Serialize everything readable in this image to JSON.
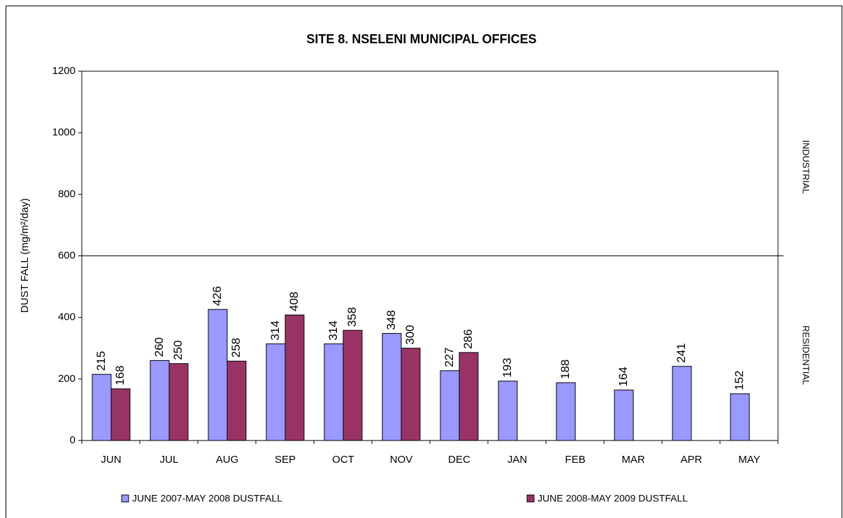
{
  "chart_data": {
    "type": "bar",
    "title": "SITE 8. NSELENI MUNICIPAL OFFICES",
    "y_label": "DUST FALL  (mg/m²/day)",
    "categories": [
      "JUN",
      "JUL",
      "AUG",
      "SEP",
      "OCT",
      "NOV",
      "DEC",
      "JAN",
      "FEB",
      "MAR",
      "APR",
      "MAY"
    ],
    "series": [
      {
        "name": "JUNE 2007-MAY 2008 DUSTFALL",
        "color": "#9999ff",
        "values": [
          215,
          260,
          426,
          314,
          314,
          348,
          227,
          193,
          188,
          164,
          241,
          152
        ]
      },
      {
        "name": "JUNE 2008-MAY 2009 DUSTFALL",
        "color": "#993366",
        "values": [
          168,
          250,
          258,
          408,
          358,
          300,
          286,
          null,
          null,
          null,
          null,
          null
        ]
      }
    ],
    "ylim": [
      0,
      1200
    ],
    "yticks": [
      0,
      200,
      400,
      600,
      800,
      1000,
      1200
    ],
    "reference_line": 600,
    "zone_labels": [
      "INDUSTRIAL",
      "RESIDENTIAL"
    ],
    "legend": "bottom"
  }
}
